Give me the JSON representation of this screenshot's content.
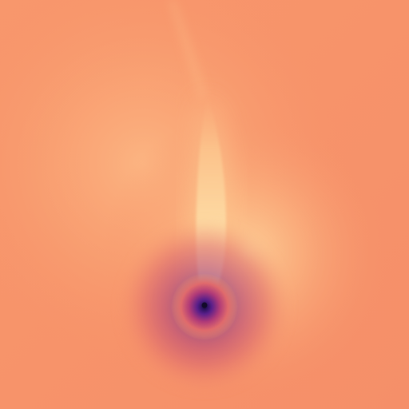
{
  "image": {
    "kind": "field-visualization",
    "colors": {
      "background": "#f7936a",
      "background_light": "#fba878",
      "warm_glow": "#fcc08a",
      "plume": "#fdd59c",
      "plume_core": "#fde0ac",
      "sink_mid": "#c2446e",
      "sink_dark": "#5a1f8a",
      "sink_core": "#120a2a"
    }
  }
}
